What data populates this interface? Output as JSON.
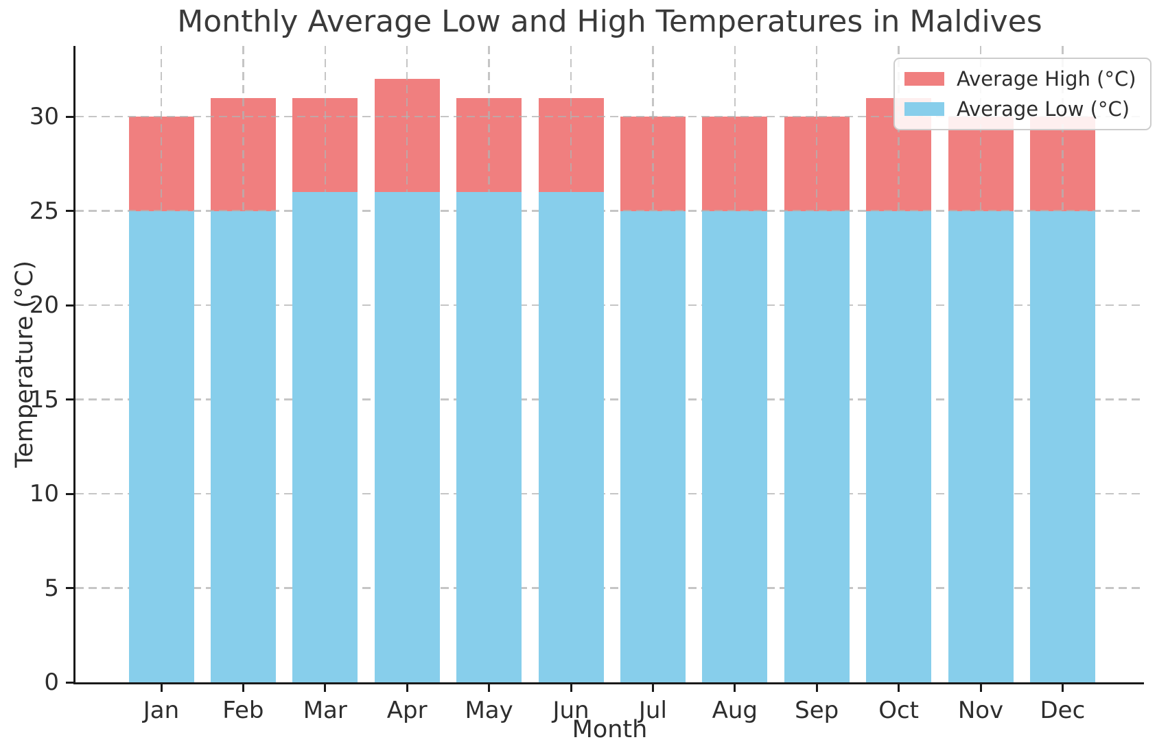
{
  "chart_data": {
    "type": "bar",
    "title": "Monthly Average Low and High Temperatures in Maldives",
    "xlabel": "Month",
    "ylabel": "Temperature (°C)",
    "categories": [
      "Jan",
      "Feb",
      "Mar",
      "Apr",
      "May",
      "Jun",
      "Jul",
      "Aug",
      "Sep",
      "Oct",
      "Nov",
      "Dec"
    ],
    "series": [
      {
        "name": "Average High (°C)",
        "color": "#F07F7F",
        "values": [
          30,
          31,
          31,
          32,
          31,
          31,
          30,
          30,
          30,
          31,
          30,
          30
        ]
      },
      {
        "name": "Average Low (°C)",
        "color": "#87CEEB",
        "values": [
          25,
          25,
          26,
          26,
          26,
          26,
          25,
          25,
          25,
          25,
          25,
          25
        ]
      }
    ],
    "bar_style": "overlaid",
    "yticks": [
      0,
      5,
      10,
      15,
      20,
      25,
      30
    ],
    "ylim": [
      0,
      33.75
    ],
    "grid": true,
    "legend_position": "upper right"
  }
}
